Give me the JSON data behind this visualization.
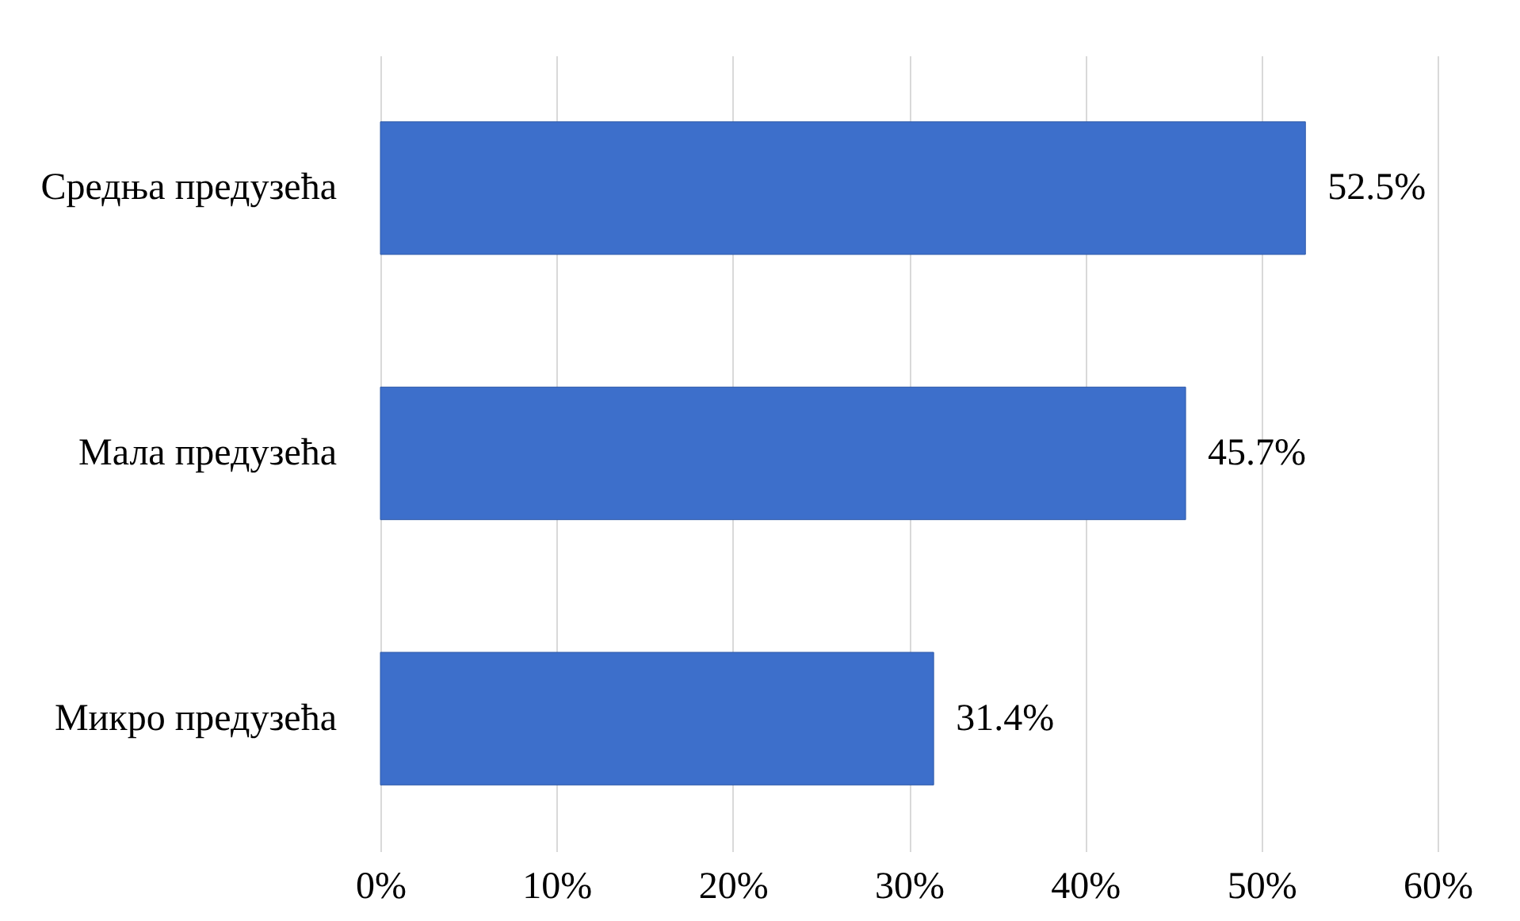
{
  "chart_data": {
    "type": "bar",
    "orientation": "horizontal",
    "categories": [
      "Средња предузећа",
      "Мала предузећа",
      "Микро предузећа"
    ],
    "values": [
      52.5,
      45.7,
      31.4
    ],
    "value_labels": [
      "52.5%",
      "45.7%",
      "31.4%"
    ],
    "color": "#3d6fcb",
    "xlim": [
      0,
      60
    ],
    "xticks": [
      {
        "value": 0,
        "label": "0%"
      },
      {
        "value": 10,
        "label": "10%"
      },
      {
        "value": 20,
        "label": "20%"
      },
      {
        "value": 30,
        "label": "30%"
      },
      {
        "value": 40,
        "label": "40%"
      },
      {
        "value": 50,
        "label": "50%"
      },
      {
        "value": 60,
        "label": "60%"
      }
    ],
    "grid": "x"
  }
}
